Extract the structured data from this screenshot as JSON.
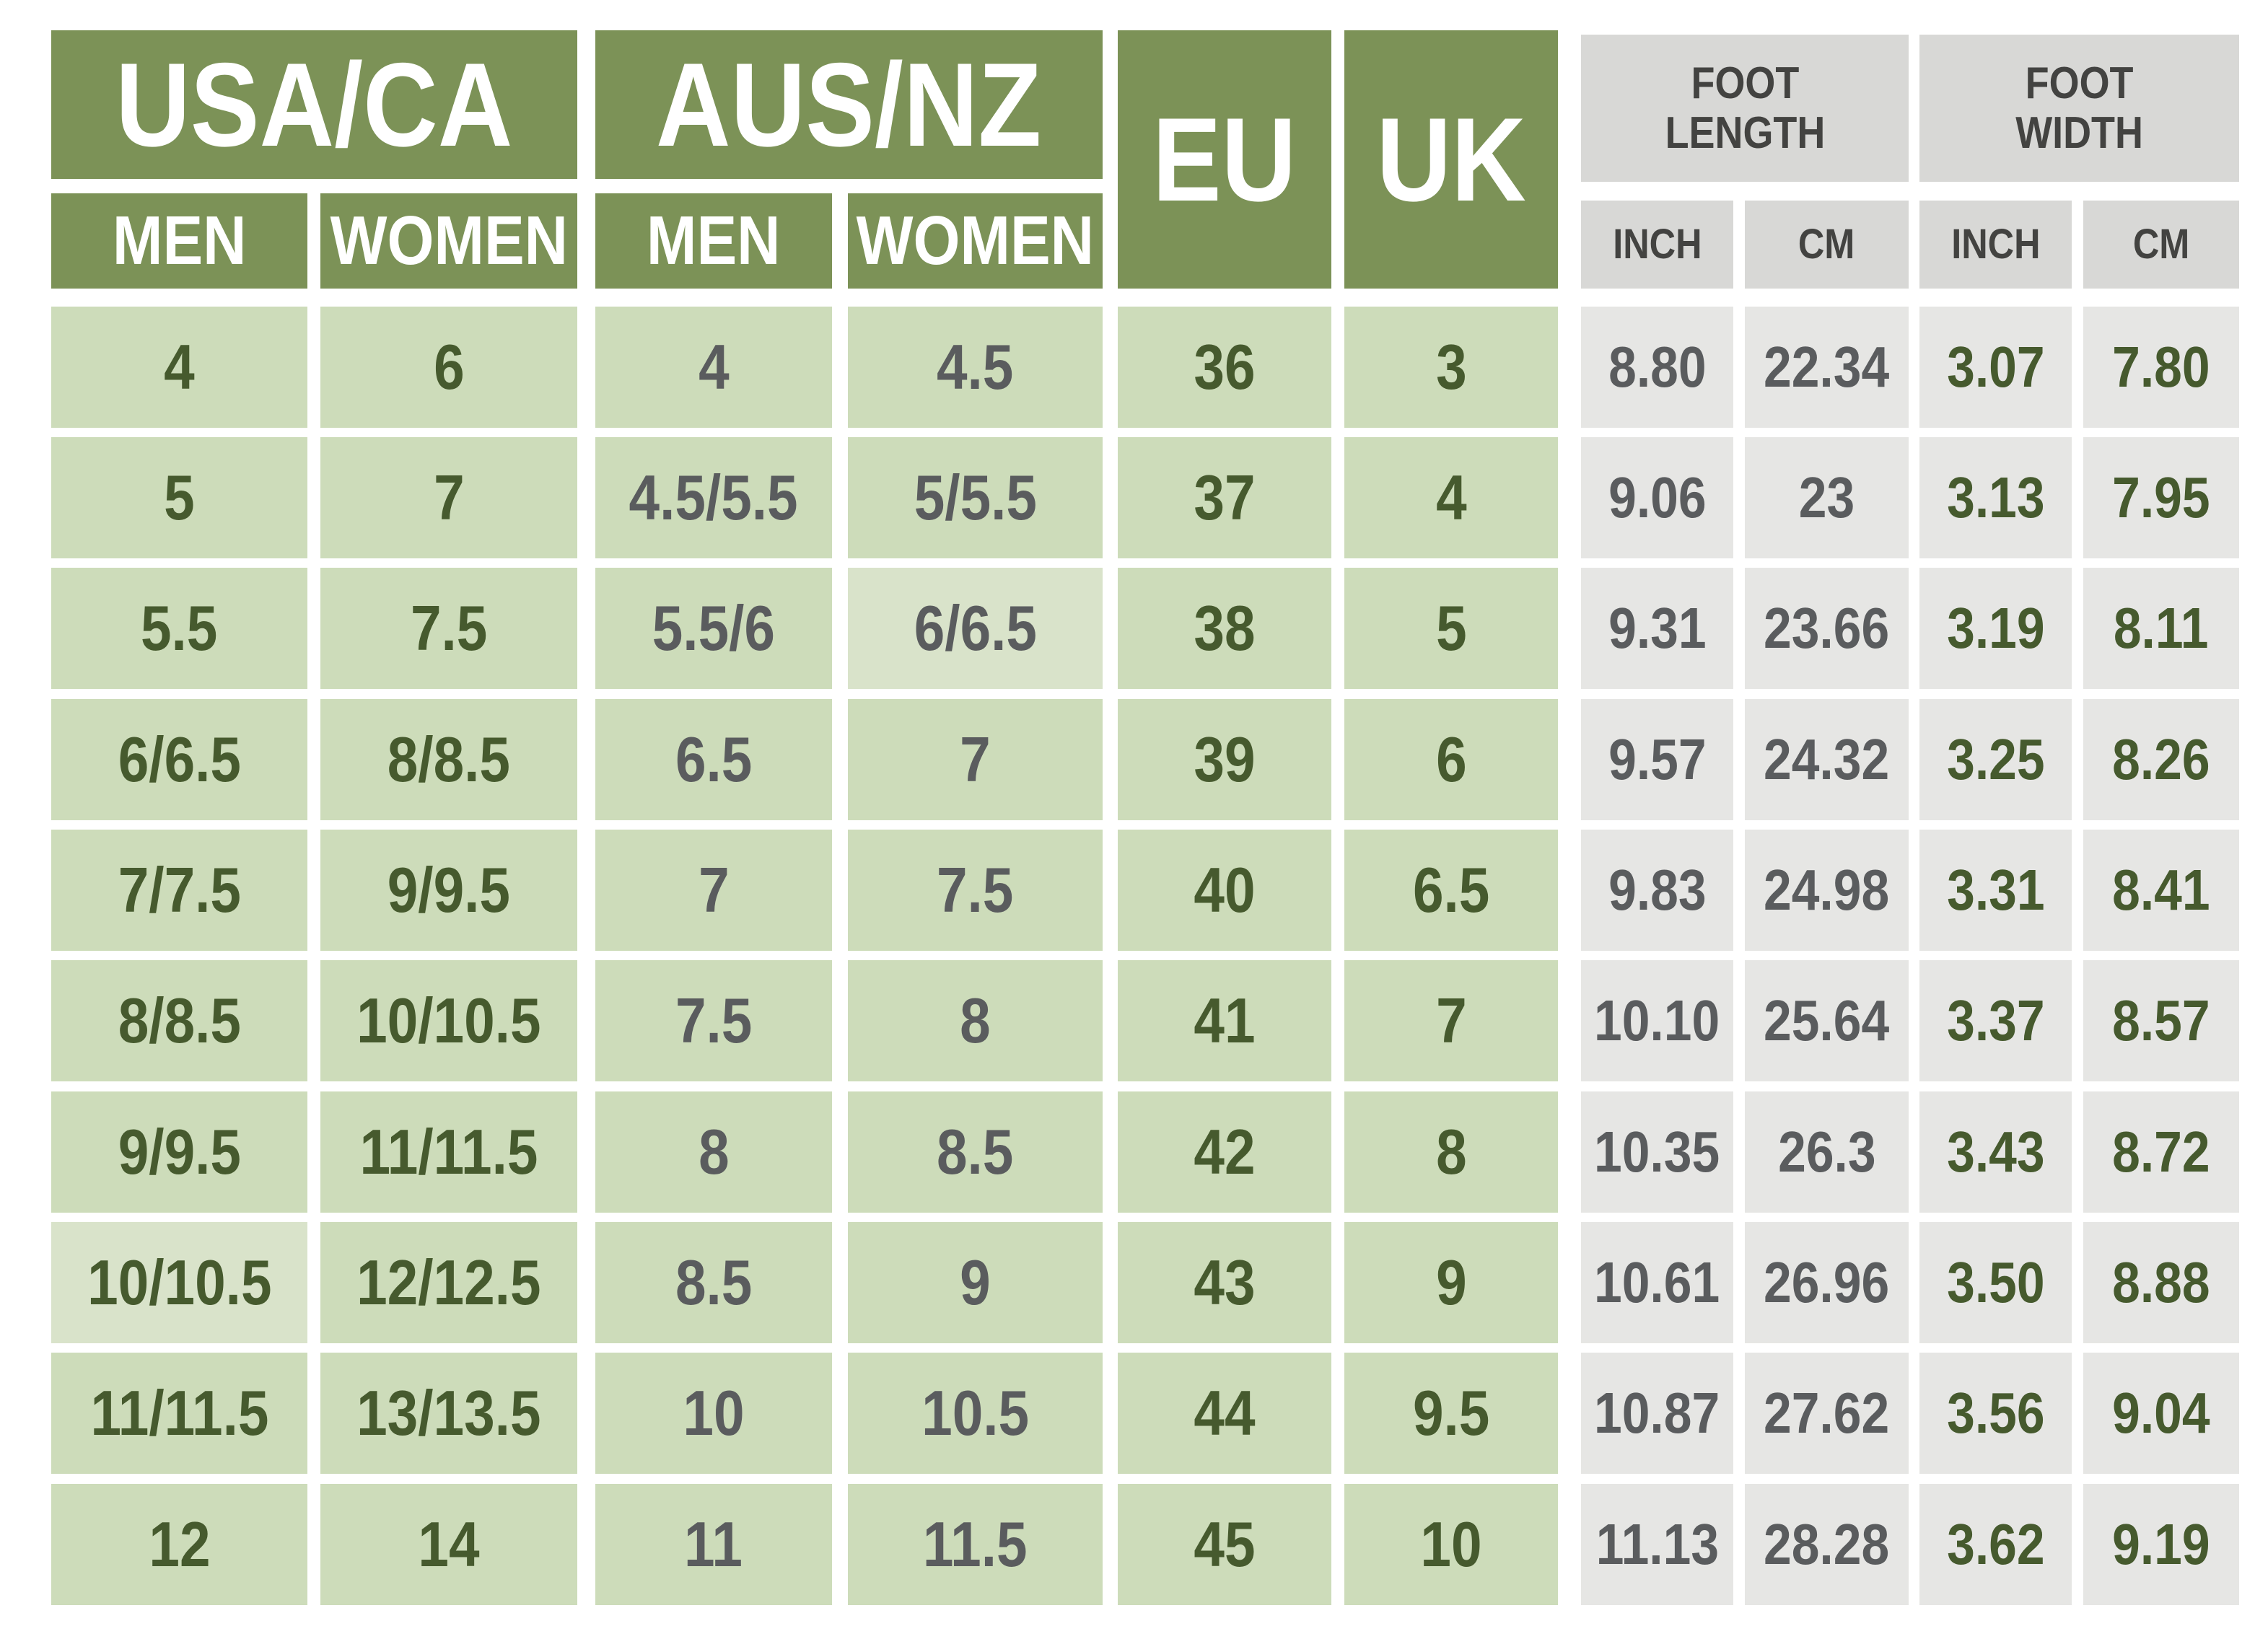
{
  "colors": {
    "header_green": "#7c9257",
    "cell_green": "#cddcba",
    "cell_green_light": "#d9e3ca",
    "header_gray": "#d8d8d6",
    "cell_gray": "#e6e6e4",
    "text_dark_green": "#465a2e",
    "text_gray": "#5a5c5e",
    "text_header_gray": "#434341",
    "text_white": "#ffffff"
  },
  "chart_data": {
    "type": "table",
    "headers": {
      "usa_ca": "USA/CA",
      "aus_nz": "AUS/NZ",
      "eu": "EU",
      "uk": "UK",
      "men": "MEN",
      "women": "WOMEN",
      "foot_length": "FOOT\nLENGTH",
      "foot_width": "FOOT\nWIDTH",
      "inch": "INCH",
      "cm": "CM"
    },
    "column_groups": [
      {
        "label": "USA/CA",
        "children": [
          "MEN",
          "WOMEN"
        ]
      },
      {
        "label": "AUS/NZ",
        "children": [
          "MEN",
          "WOMEN"
        ]
      },
      {
        "label": "EU",
        "children": []
      },
      {
        "label": "UK",
        "children": []
      },
      {
        "label": "FOOT LENGTH",
        "children": [
          "INCH",
          "CM"
        ]
      },
      {
        "label": "FOOT WIDTH",
        "children": [
          "INCH",
          "CM"
        ]
      }
    ],
    "columns": [
      "USA/CA MEN",
      "USA/CA WOMEN",
      "AUS/NZ MEN",
      "AUS/NZ WOMEN",
      "EU",
      "UK",
      "FOOT LENGTH INCH",
      "FOOT LENGTH CM",
      "FOOT WIDTH INCH",
      "FOOT WIDTH CM"
    ],
    "rows": [
      {
        "usa_men": "4",
        "usa_women": "6",
        "aus_men": "4",
        "aus_women": "4.5",
        "eu": "36",
        "uk": "3",
        "len_inch": "8.80",
        "len_cm": "22.34",
        "wid_inch": "3.07",
        "wid_cm": "7.80"
      },
      {
        "usa_men": "5",
        "usa_women": "7",
        "aus_men": "4.5/5.5",
        "aus_women": "5/5.5",
        "eu": "37",
        "uk": "4",
        "len_inch": "9.06",
        "len_cm": "23",
        "wid_inch": "3.13",
        "wid_cm": "7.95"
      },
      {
        "usa_men": "5.5",
        "usa_women": "7.5",
        "aus_men": "5.5/6",
        "aus_women": "6/6.5",
        "eu": "38",
        "uk": "5",
        "len_inch": "9.31",
        "len_cm": "23.66",
        "wid_inch": "3.19",
        "wid_cm": "8.11"
      },
      {
        "usa_men": "6/6.5",
        "usa_women": "8/8.5",
        "aus_men": "6.5",
        "aus_women": "7",
        "eu": "39",
        "uk": "6",
        "len_inch": "9.57",
        "len_cm": "24.32",
        "wid_inch": "3.25",
        "wid_cm": "8.26"
      },
      {
        "usa_men": "7/7.5",
        "usa_women": "9/9.5",
        "aus_men": "7",
        "aus_women": "7.5",
        "eu": "40",
        "uk": "6.5",
        "len_inch": "9.83",
        "len_cm": "24.98",
        "wid_inch": "3.31",
        "wid_cm": "8.41"
      },
      {
        "usa_men": "8/8.5",
        "usa_women": "10/10.5",
        "aus_men": "7.5",
        "aus_women": "8",
        "eu": "41",
        "uk": "7",
        "len_inch": "10.10",
        "len_cm": "25.64",
        "wid_inch": "3.37",
        "wid_cm": "8.57"
      },
      {
        "usa_men": "9/9.5",
        "usa_women": "11/11.5",
        "aus_men": "8",
        "aus_women": "8.5",
        "eu": "42",
        "uk": "8",
        "len_inch": "10.35",
        "len_cm": "26.3",
        "wid_inch": "3.43",
        "wid_cm": "8.72"
      },
      {
        "usa_men": "10/10.5",
        "usa_women": "12/12.5",
        "aus_men": "8.5",
        "aus_women": "9",
        "eu": "43",
        "uk": "9",
        "len_inch": "10.61",
        "len_cm": "26.96",
        "wid_inch": "3.50",
        "wid_cm": "8.88"
      },
      {
        "usa_men": "11/11.5",
        "usa_women": "13/13.5",
        "aus_men": "10",
        "aus_women": "10.5",
        "eu": "44",
        "uk": "9.5",
        "len_inch": "10.87",
        "len_cm": "27.62",
        "wid_inch": "3.56",
        "wid_cm": "9.04"
      },
      {
        "usa_men": "12",
        "usa_women": "14",
        "aus_men": "11",
        "aus_women": "11.5",
        "eu": "45",
        "uk": "10",
        "len_inch": "11.13",
        "len_cm": "28.28",
        "wid_inch": "3.62",
        "wid_cm": "9.19"
      }
    ]
  }
}
